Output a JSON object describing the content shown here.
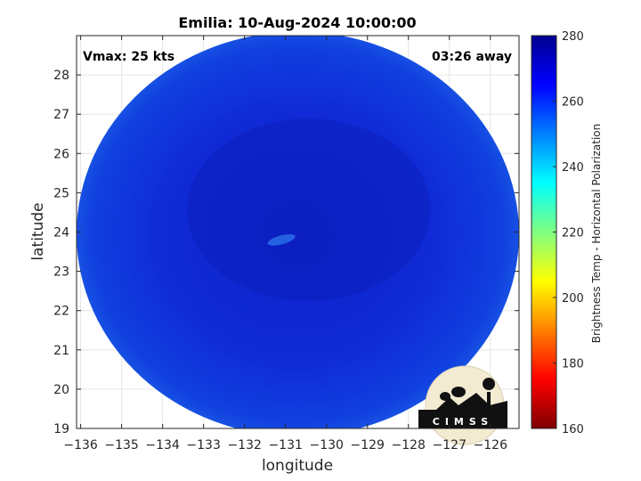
{
  "chart_data": {
    "type": "heatmap",
    "title": "Emilia: 10-Aug-2024 10:00:00",
    "xlabel": "longitude",
    "ylabel": "latitude",
    "xlim": [
      -136.1,
      -125.3
    ],
    "ylim": [
      19,
      29
    ],
    "xticks": [
      -136,
      -135,
      -134,
      -133,
      -132,
      -131,
      -130,
      -129,
      -128,
      -127,
      -126
    ],
    "yticks": [
      19,
      20,
      21,
      22,
      23,
      24,
      25,
      26,
      27,
      28
    ],
    "grid": true,
    "swath_center": [
      -130.7,
      23.95
    ],
    "swath_radius_deg": [
      5.4,
      5.15
    ],
    "dominant_value": 262,
    "colorbar": {
      "label": "Brightness Temp - Horizontal Polarization",
      "range": [
        160,
        280
      ],
      "ticks": [
        160,
        180,
        200,
        220,
        240,
        260,
        280
      ],
      "colors": [
        "#7f0000",
        "#ff0000",
        "#ff8000",
        "#ffff00",
        "#80ff80",
        "#00ffff",
        "#0080ff",
        "#0000ff",
        "#00008f"
      ]
    },
    "annotations": {
      "vmax": "Vmax: 25 kts",
      "time_away": "03:26 away"
    },
    "logo_text": "CIMSS"
  }
}
